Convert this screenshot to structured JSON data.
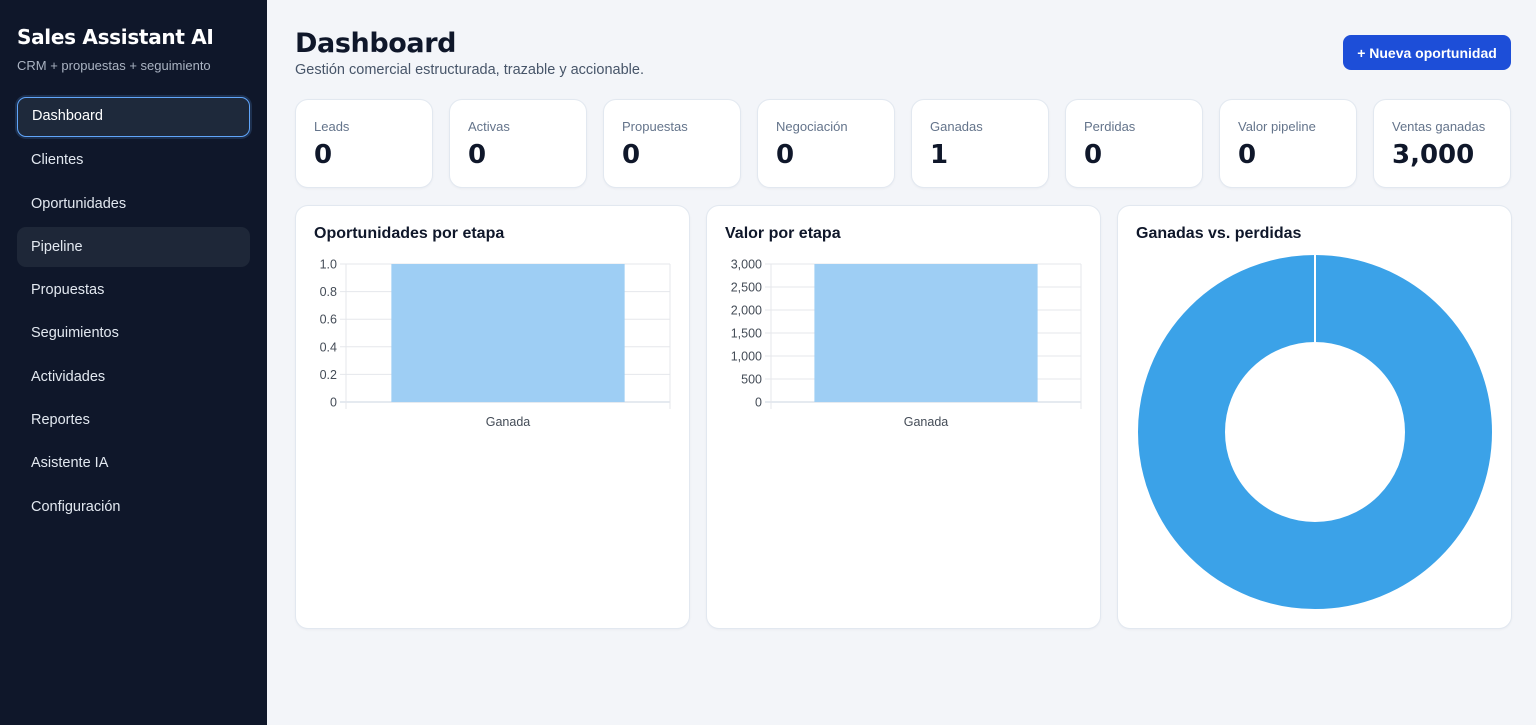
{
  "app": {
    "title": "Sales Assistant AI",
    "subtitle": "CRM + propuestas + seguimiento"
  },
  "sidebar": {
    "items": [
      {
        "label": "Dashboard",
        "state": "active"
      },
      {
        "label": "Clientes"
      },
      {
        "label": "Oportunidades"
      },
      {
        "label": "Pipeline",
        "state": "hover"
      },
      {
        "label": "Propuestas"
      },
      {
        "label": "Seguimientos"
      },
      {
        "label": "Actividades"
      },
      {
        "label": "Reportes"
      },
      {
        "label": "Asistente IA"
      },
      {
        "label": "Configuración"
      }
    ]
  },
  "header": {
    "title": "Dashboard",
    "subtitle": "Gestión comercial estructurada, trazable y accionable.",
    "new_button": "+ Nueva oportunidad"
  },
  "stats": [
    {
      "label": "Leads",
      "value": "0"
    },
    {
      "label": "Activas",
      "value": "0"
    },
    {
      "label": "Propuestas",
      "value": "0"
    },
    {
      "label": "Negociación",
      "value": "0"
    },
    {
      "label": "Ganadas",
      "value": "1"
    },
    {
      "label": "Perdidas",
      "value": "0"
    },
    {
      "label": "Valor pipeline",
      "value": "0"
    },
    {
      "label": "Ventas ganadas",
      "value": "3,000"
    }
  ],
  "colors": {
    "sidebar_bg": "#0f172a",
    "accent": "#1d4ed8",
    "bar_fill": "#9ecef4",
    "donut_fill": "#3ba2e8"
  },
  "chart_data": [
    {
      "type": "bar",
      "title": "Oportunidades por etapa",
      "categories": [
        "Ganada"
      ],
      "values": [
        1
      ],
      "ylim": [
        0,
        1.0
      ],
      "yticks": [
        "0",
        "0.2",
        "0.4",
        "0.6",
        "0.8",
        "1.0"
      ],
      "grid": true,
      "legend": "none"
    },
    {
      "type": "bar",
      "title": "Valor por etapa",
      "categories": [
        "Ganada"
      ],
      "values": [
        3000
      ],
      "ylim": [
        0,
        3000
      ],
      "yticks": [
        "0",
        "500",
        "1,000",
        "1,500",
        "2,000",
        "2,500",
        "3,000"
      ],
      "grid": true,
      "legend": "none"
    },
    {
      "type": "pie",
      "title": "Ganadas vs. perdidas",
      "categories": [
        "Ganadas",
        "Perdidas"
      ],
      "values": [
        1,
        0
      ],
      "donut": true,
      "legend": "none"
    }
  ]
}
